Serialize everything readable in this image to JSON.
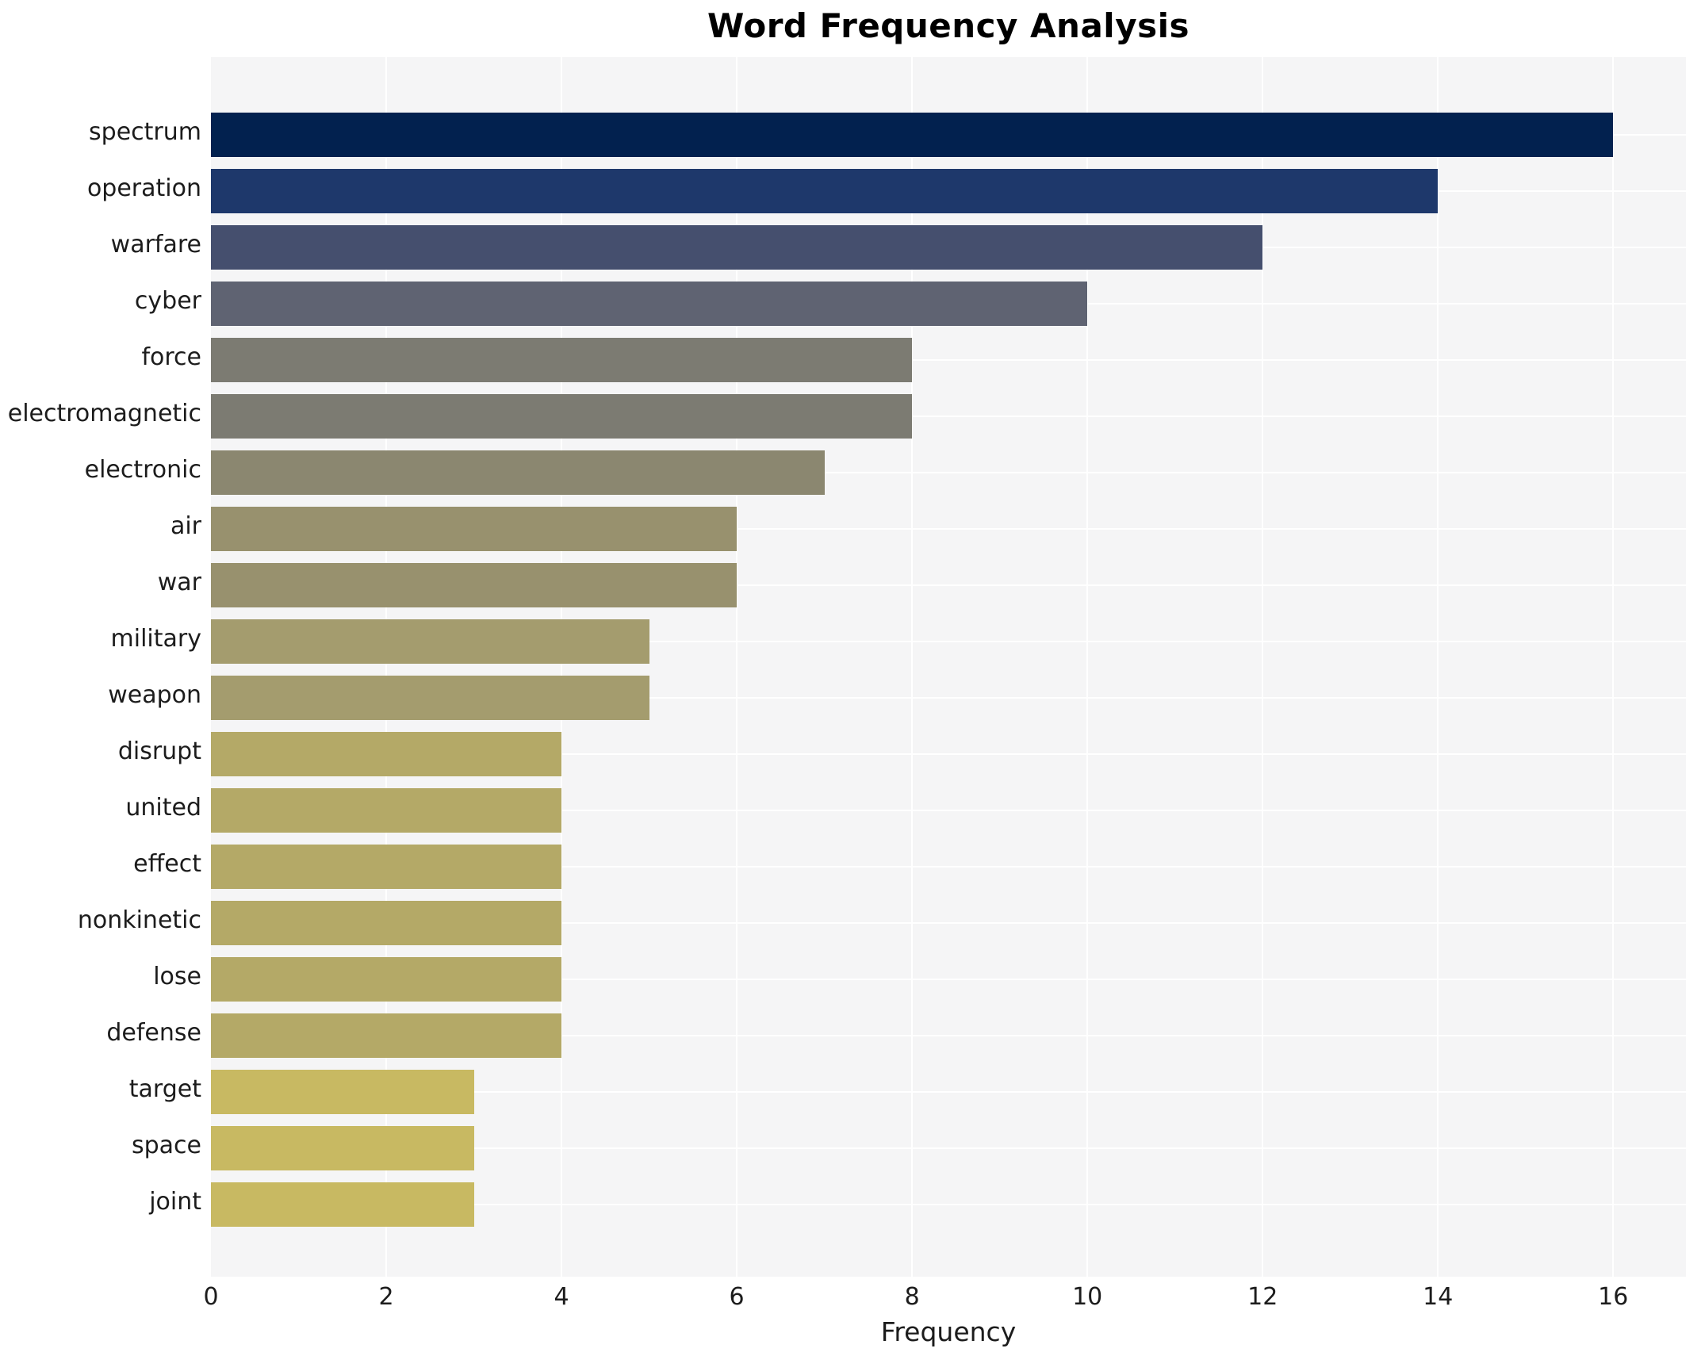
{
  "chart": {
    "title": "Word Frequency Analysis",
    "xlabel": "Frequency"
  },
  "chart_data": {
    "type": "bar",
    "orientation": "horizontal",
    "title": "Word Frequency Analysis",
    "xlabel": "Frequency",
    "ylabel": "",
    "categories": [
      "spectrum",
      "operation",
      "warfare",
      "cyber",
      "force",
      "electromagnetic",
      "electronic",
      "air",
      "war",
      "military",
      "weapon",
      "disrupt",
      "united",
      "effect",
      "nonkinetic",
      "lose",
      "defense",
      "target",
      "space",
      "joint"
    ],
    "values": [
      16,
      14,
      12,
      10,
      8,
      8,
      7,
      6,
      6,
      5,
      5,
      4,
      4,
      4,
      4,
      4,
      4,
      3,
      3,
      3
    ],
    "bar_colors": [
      "#02214f",
      "#1e386b",
      "#454f6e",
      "#5f6372",
      "#7c7b72",
      "#7c7b72",
      "#8b8770",
      "#98916e",
      "#98916e",
      "#a49c6e",
      "#a49c6e",
      "#b4a967",
      "#b4a967",
      "#b4a967",
      "#b4a967",
      "#b4a967",
      "#b4a967",
      "#c8b962",
      "#c8b962",
      "#c8b962"
    ],
    "xticks": [
      0,
      2,
      4,
      6,
      8,
      10,
      12,
      14,
      16
    ],
    "xlim": [
      0,
      16.83
    ],
    "grid": true,
    "grid_color": "#ffffff",
    "plot_background": "#f5f5f6",
    "legend": false
  }
}
